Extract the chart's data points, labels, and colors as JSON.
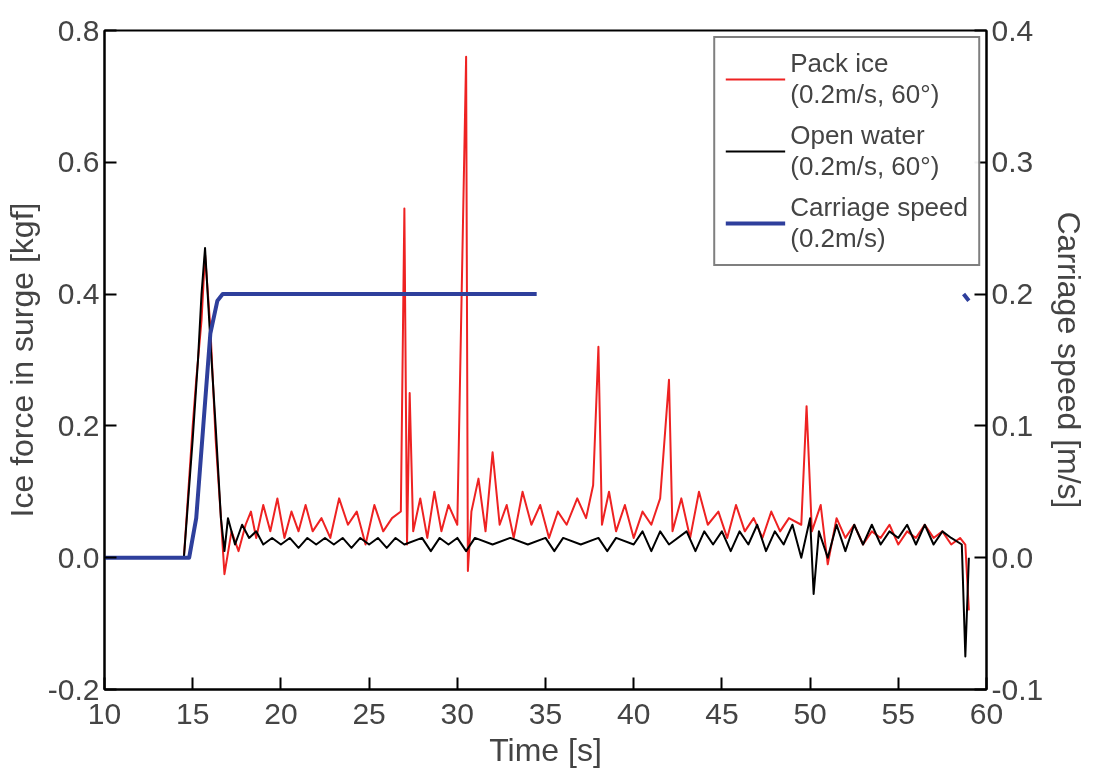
{
  "chart_data": {
    "type": "line",
    "xlabel": "Time [s]",
    "ylabel": "Ice force in surge [kgf]",
    "y2label": "Carriage speed [m/s]",
    "xlim": [
      10,
      60
    ],
    "xticks": [
      10,
      15,
      20,
      25,
      30,
      35,
      40,
      45,
      50,
      55,
      60
    ],
    "ylim": [
      -0.2,
      0.8
    ],
    "yticks": [
      {
        "value": -0.2,
        "label": "-0.2"
      },
      {
        "value": 0,
        "label": "0.0"
      },
      0.2,
      0.4,
      0.6,
      0.8
    ],
    "y2lim": [
      -0.1,
      0.4
    ],
    "y2ticks": [
      {
        "value": -0.1,
        "label": "-0.1"
      },
      {
        "value": 0,
        "label": "0.0"
      },
      0.1,
      0.2,
      0.3,
      0.4
    ],
    "grid": false,
    "legend": "top right",
    "series": [
      {
        "name": "Pack ice\n(0.2m/s, 60°)",
        "color": "#ee2222",
        "x": [
          10,
          14.5,
          15,
          15.2,
          15.5,
          15.7,
          16,
          16.3,
          16.6,
          16.8,
          17.2,
          17.6,
          18,
          18.3,
          18.6,
          19,
          19.4,
          19.8,
          20.2,
          20.6,
          21,
          21.4,
          21.8,
          22.3,
          22.8,
          23.3,
          23.8,
          24.3,
          24.8,
          25.3,
          25.8,
          26.3,
          26.8,
          27.0,
          27.15,
          27.3,
          27.5,
          27.9,
          28.3,
          28.7,
          29.1,
          29.5,
          30,
          30.5,
          30.6,
          30.8,
          31.2,
          31.6,
          32.0,
          32.4,
          32.8,
          33.2,
          33.7,
          34.2,
          34.7,
          35.2,
          35.7,
          36.2,
          36.8,
          37.3,
          37.7,
          38.0,
          38.2,
          38.6,
          39.0,
          39.5,
          40,
          40.5,
          41,
          41.5,
          42,
          42.2,
          42.7,
          43.2,
          43.7,
          44.2,
          44.8,
          45.3,
          45.8,
          46.3,
          46.8,
          47.3,
          47.8,
          48.3,
          48.8,
          49.5,
          49.8,
          50.1,
          50.6,
          51,
          51.5,
          52,
          52.5,
          53,
          53.5,
          54,
          54.5,
          55,
          55.5,
          56,
          56.5,
          57,
          57.5,
          58,
          58.5,
          58.8,
          59
        ],
        "values": [
          0,
          0,
          0.2,
          0.27,
          0.36,
          0.46,
          0.35,
          0.18,
          0.06,
          -0.025,
          0.04,
          0.01,
          0.05,
          0.07,
          0.03,
          0.08,
          0.04,
          0.09,
          0.03,
          0.07,
          0.04,
          0.08,
          0.04,
          0.06,
          0.03,
          0.09,
          0.05,
          0.07,
          0.02,
          0.08,
          0.04,
          0.06,
          0.07,
          0.53,
          0.02,
          0.25,
          0.04,
          0.09,
          0.03,
          0.1,
          0.04,
          0.08,
          0.05,
          0.76,
          -0.02,
          0.07,
          0.12,
          0.04,
          0.16,
          0.05,
          0.08,
          0.03,
          0.1,
          0.05,
          0.08,
          0.03,
          0.07,
          0.05,
          0.09,
          0.06,
          0.11,
          0.32,
          0.05,
          0.1,
          0.04,
          0.08,
          0.03,
          0.07,
          0.05,
          0.09,
          0.27,
          0.04,
          0.09,
          0.03,
          0.1,
          0.05,
          0.07,
          0.03,
          0.08,
          0.04,
          0.06,
          0.03,
          0.07,
          0.04,
          0.06,
          0.05,
          0.23,
          0.04,
          0.08,
          -0.01,
          0.06,
          0.03,
          0.05,
          0.02,
          0.04,
          0.03,
          0.05,
          0.02,
          0.04,
          0.03,
          0.05,
          0.03,
          0.04,
          0.02,
          0.03,
          0.02,
          -0.08
        ]
      },
      {
        "name": "Open water\n(0.2m/s, 60°)",
        "color": "#000000",
        "x": [
          10,
          14.5,
          15,
          15.3,
          15.5,
          15.7,
          16,
          16.3,
          16.6,
          16.8,
          17,
          17.4,
          17.8,
          18.2,
          18.6,
          19,
          19.5,
          20,
          20.5,
          21,
          21.5,
          22,
          22.5,
          23,
          23.5,
          24,
          24.5,
          25,
          25.5,
          26,
          26.5,
          27,
          28,
          28.5,
          29,
          29.5,
          30,
          30.5,
          31,
          32,
          33,
          34,
          35,
          35.5,
          36,
          37,
          38,
          38.5,
          39,
          40,
          40.5,
          41,
          41.5,
          42,
          43,
          43.5,
          44,
          44.5,
          45,
          45.5,
          46,
          46.5,
          47,
          47.5,
          48,
          48.5,
          49,
          49.5,
          50,
          50.2,
          50.5,
          51,
          51.5,
          52,
          52.5,
          53,
          53.5,
          54,
          54.5,
          55,
          55.5,
          56,
          56.5,
          57,
          57.5,
          58,
          58.6,
          58.8,
          59
        ],
        "values": [
          0,
          0,
          0.18,
          0.3,
          0.4,
          0.47,
          0.33,
          0.2,
          0.06,
          0.01,
          0.06,
          0.02,
          0.05,
          0.03,
          0.04,
          0.02,
          0.03,
          0.02,
          0.03,
          0.015,
          0.03,
          0.02,
          0.03,
          0.02,
          0.03,
          0.015,
          0.03,
          0.02,
          0.03,
          0.015,
          0.03,
          0.02,
          0.03,
          0.01,
          0.03,
          0.02,
          0.03,
          0.01,
          0.03,
          0.02,
          0.03,
          0.02,
          0.03,
          0.01,
          0.03,
          0.02,
          0.03,
          0.01,
          0.03,
          0.02,
          0.04,
          0.01,
          0.04,
          0.02,
          0.04,
          0.01,
          0.04,
          0.02,
          0.04,
          0.01,
          0.04,
          0.02,
          0.05,
          0.01,
          0.04,
          0.02,
          0.05,
          0.0,
          0.06,
          -0.055,
          0.04,
          0.0,
          0.05,
          0.01,
          0.05,
          0.02,
          0.05,
          0.02,
          0.04,
          0.03,
          0.05,
          0.02,
          0.05,
          0.02,
          0.04,
          0.03,
          0.02,
          -0.15,
          0.0
        ]
      },
      {
        "name": "Carriage speed\n(0.2m/s)",
        "color": "#2e3f9c",
        "axis": "y2",
        "x": [
          10,
          14.8,
          15.2,
          15.6,
          16.0,
          16.4,
          16.7,
          25,
          34.5,
          46,
          58.7,
          59
        ],
        "values": [
          0,
          0,
          0.03,
          0.1,
          0.17,
          0.195,
          0.2,
          0.2,
          0.2,
          null,
          0.2,
          0.195
        ]
      }
    ]
  }
}
